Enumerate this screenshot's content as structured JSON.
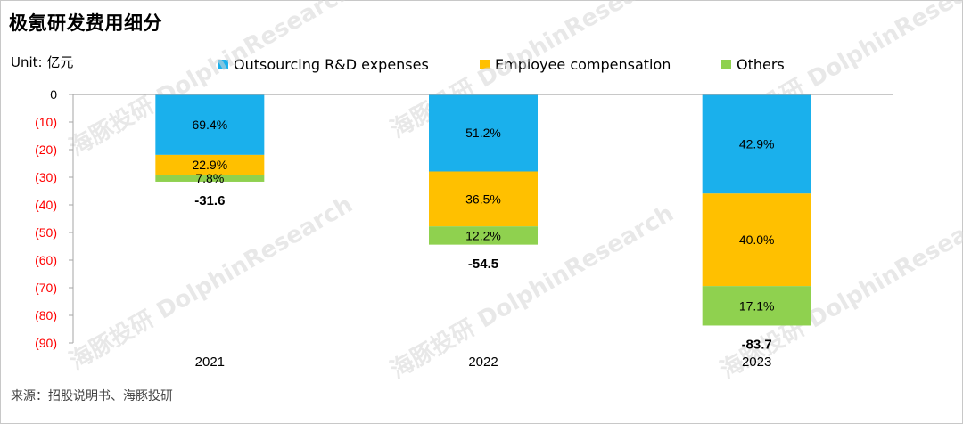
{
  "title": "极氪研发费用细分",
  "unit": "Unit: 亿元",
  "source": "来源：招股说明书、海豚投研",
  "watermark": "海豚投研 DolphinResearch",
  "colors": {
    "outsourcing": "#1ab0ec",
    "employee": "#ffc000",
    "others": "#8fd14f",
    "negative_tick": "#ff0000",
    "axis": "#a6a6a6"
  },
  "legend": [
    {
      "label": "Outsourcing R&D expenses",
      "color": "#1ab0ec"
    },
    {
      "label": "Employee compensation",
      "color": "#ffc000"
    },
    {
      "label": "Others",
      "color": "#8fd14f"
    }
  ],
  "chart_data": {
    "type": "bar",
    "stacked": true,
    "categories": [
      "2021",
      "2022",
      "2023"
    ],
    "totals": [
      -31.6,
      -54.5,
      -83.7
    ],
    "total_labels": [
      "-31.6",
      "-54.5",
      "-83.7"
    ],
    "series": [
      {
        "name": "Outsourcing R&D expenses",
        "share_labels": [
          "69.4%",
          "51.2%",
          "42.9%"
        ],
        "values": [
          -21.9,
          -27.9,
          -35.9
        ]
      },
      {
        "name": "Employee compensation",
        "share_labels": [
          "22.9%",
          "36.5%",
          "40.0%"
        ],
        "values": [
          -7.2,
          -19.9,
          -33.5
        ]
      },
      {
        "name": "Others",
        "share_labels": [
          "7.8%",
          "12.2%",
          "17.1%"
        ],
        "values": [
          -2.5,
          -6.6,
          -14.3
        ]
      }
    ],
    "ylim": [
      -90,
      0
    ],
    "yticks": [
      0,
      -10,
      -20,
      -30,
      -40,
      -50,
      -60,
      -70,
      -80,
      -90
    ],
    "ytick_labels": [
      "0",
      "(10)",
      "(20)",
      "(30)",
      "(40)",
      "(50)",
      "(60)",
      "(70)",
      "(80)",
      "(90)"
    ],
    "legend_position": "top",
    "grid": false
  }
}
